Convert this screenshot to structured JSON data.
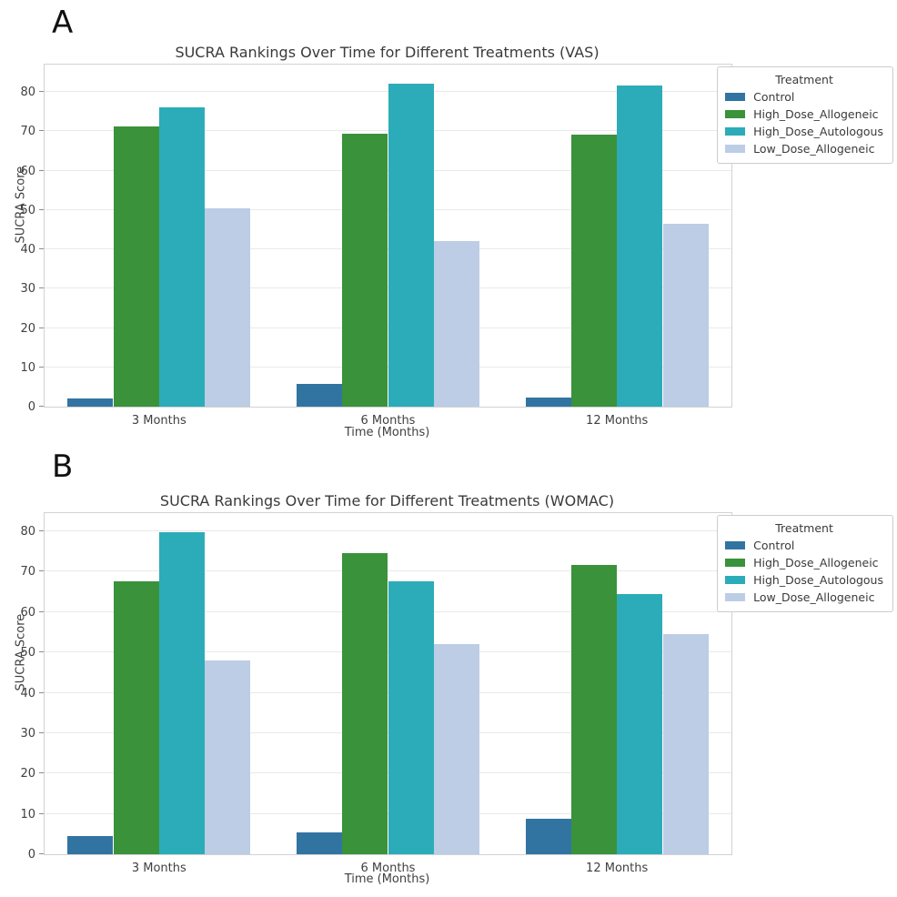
{
  "panels": [
    {
      "label": "A"
    },
    {
      "label": "B"
    }
  ],
  "chart_data": [
    {
      "type": "bar",
      "panel": "A",
      "title": "SUCRA Rankings Over Time for Different Treatments (VAS)",
      "xlabel": "Time (Months)",
      "ylabel": "SUCRA Score",
      "categories": [
        "3 Months",
        "6 Months",
        "12 Months"
      ],
      "series": [
        {
          "name": "Control",
          "color": "#3274a1",
          "values": [
            2.0,
            5.9,
            2.4
          ]
        },
        {
          "name": "High_Dose_Allogeneic",
          "color": "#3a923a",
          "values": [
            71.2,
            69.4,
            69.3
          ]
        },
        {
          "name": "High_Dose_Autologous",
          "color": "#2cacb8",
          "values": [
            76.1,
            82.2,
            81.7
          ]
        },
        {
          "name": "Low_Dose_Allogeneic",
          "color": "#bccde5",
          "values": [
            50.4,
            42.2,
            46.5
          ]
        }
      ],
      "ylim": [
        0,
        87
      ],
      "yticks": [
        0,
        10,
        20,
        30,
        40,
        50,
        60,
        70,
        80
      ],
      "legend_title": "Treatment",
      "legend_position": "outside upper right",
      "grid": "horizontal"
    },
    {
      "type": "bar",
      "panel": "B",
      "title": "SUCRA Rankings Over Time for Different Treatments (WOMAC)",
      "xlabel": "Time (Months)",
      "ylabel": "SUCRA Score",
      "categories": [
        "3 Months",
        "6 Months",
        "12 Months"
      ],
      "series": [
        {
          "name": "Control",
          "color": "#3274a1",
          "values": [
            4.4,
            5.5,
            8.8
          ]
        },
        {
          "name": "High_Dose_Allogeneic",
          "color": "#3a923a",
          "values": [
            67.7,
            74.5,
            71.6
          ]
        },
        {
          "name": "High_Dose_Autologous",
          "color": "#2cacb8",
          "values": [
            79.8,
            67.5,
            64.5
          ]
        },
        {
          "name": "Low_Dose_Allogeneic",
          "color": "#bccde5",
          "values": [
            47.9,
            52.0,
            54.5
          ]
        }
      ],
      "ylim": [
        0,
        84.5
      ],
      "yticks": [
        0,
        10,
        20,
        30,
        40,
        50,
        60,
        70,
        80
      ],
      "legend_title": "Treatment",
      "legend_position": "outside upper right",
      "grid": "horizontal"
    }
  ]
}
